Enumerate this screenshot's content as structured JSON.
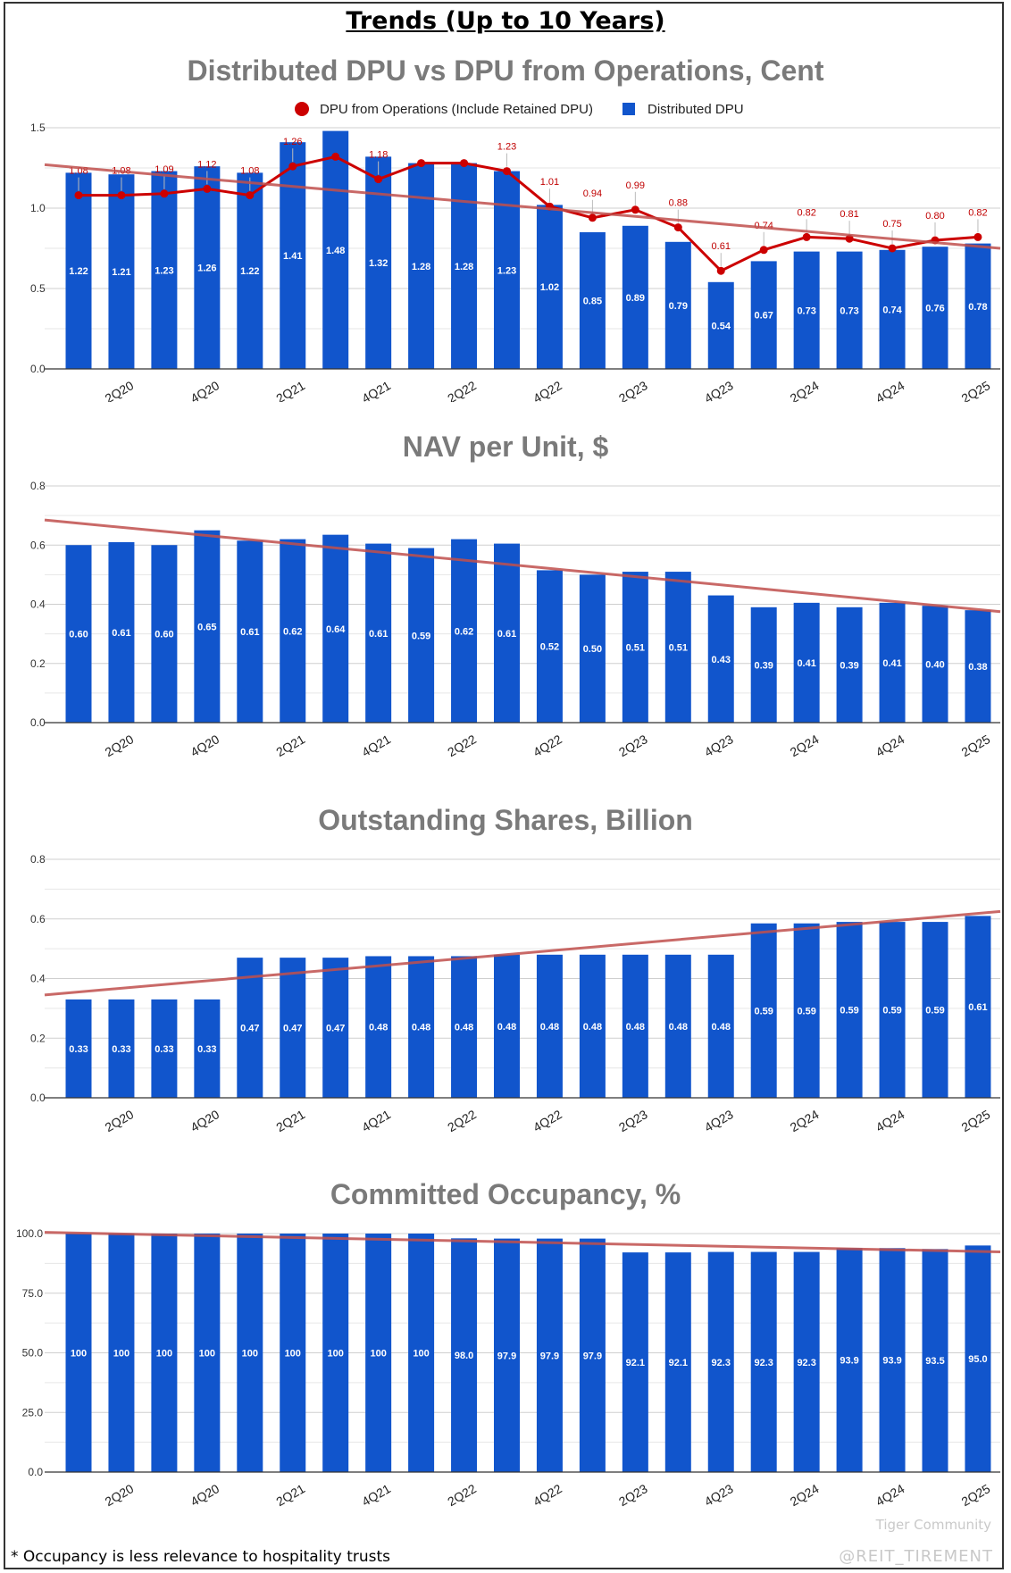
{
  "page": {
    "title": "Trends (Up to 10 Years)",
    "footnote": "* Occupancy is less relevance to hospitality trusts",
    "brand": "Tiger Community",
    "credit": "@REIT_TIREMENT"
  },
  "colors": {
    "bar": "#1155cc",
    "line": "#cc0000",
    "trend": "#c0504d"
  },
  "chart_data": [
    {
      "type": "bar",
      "title": "Distributed DPU vs DPU from Operations, Cent",
      "categories": [
        "1Q20",
        "2Q20",
        "3Q20",
        "4Q20",
        "1Q21",
        "2Q21",
        "3Q21",
        "4Q21",
        "1Q22",
        "2Q22",
        "3Q22",
        "4Q22",
        "1Q23",
        "2Q23",
        "3Q23",
        "4Q23",
        "1Q24",
        "2Q24",
        "3Q24",
        "4Q24",
        "1Q25",
        "2Q25"
      ],
      "x_tick_labels": [
        "2Q20",
        "4Q20",
        "2Q21",
        "4Q21",
        "2Q22",
        "4Q22",
        "2Q23",
        "4Q23",
        "2Q24",
        "4Q24",
        "2Q25"
      ],
      "yticks": [
        "0.0",
        "0.5",
        "1.0",
        "1.5"
      ],
      "ylim": [
        0,
        1.5
      ],
      "series": [
        {
          "name": "Distributed DPU",
          "type": "bar",
          "values": [
            1.22,
            1.21,
            1.23,
            1.26,
            1.22,
            1.41,
            1.48,
            1.32,
            1.28,
            1.28,
            1.23,
            1.02,
            0.85,
            0.89,
            0.79,
            0.54,
            0.67,
            0.73,
            0.73,
            0.74,
            0.76,
            0.78
          ],
          "labels": [
            "1.22",
            "1.21",
            "1.23",
            "1.26",
            "1.22",
            "1.41",
            "1.48",
            "1.32",
            "1.28",
            "1.28",
            "1.23",
            "1.02",
            "0.85",
            "0.89",
            "0.79",
            "0.54",
            "0.67",
            "0.73",
            "0.73",
            "0.74",
            "0.76",
            "0.78"
          ]
        },
        {
          "name": "DPU from Operations (Include Retained DPU)",
          "type": "line",
          "values": [
            1.08,
            1.08,
            1.09,
            1.12,
            1.08,
            1.26,
            1.32,
            1.18,
            1.28,
            1.28,
            1.23,
            1.01,
            0.94,
            0.99,
            0.88,
            0.61,
            0.74,
            0.82,
            0.81,
            0.75,
            0.8,
            0.82
          ],
          "labels": [
            "1.08",
            "1.08",
            "1.09",
            "1.12",
            "1.08",
            "1.26",
            "",
            "1.18",
            "",
            "",
            "1.23",
            "1.01",
            "0.94",
            "0.99",
            "0.88",
            "0.61",
            "0.74",
            "0.82",
            "0.81",
            "0.75",
            "0.80",
            "0.82"
          ]
        }
      ],
      "trendline": [
        1.27,
        0.75
      ],
      "legend": [
        "DPU from Operations (Include Retained DPU)",
        "Distributed DPU"
      ]
    },
    {
      "type": "bar",
      "title": "NAV per Unit, $",
      "categories": [
        "1Q20",
        "2Q20",
        "3Q20",
        "4Q20",
        "1Q21",
        "2Q21",
        "3Q21",
        "4Q21",
        "1Q22",
        "2Q22",
        "3Q22",
        "4Q22",
        "1Q23",
        "2Q23",
        "3Q23",
        "4Q23",
        "1Q24",
        "2Q24",
        "3Q24",
        "4Q24",
        "1Q25",
        "2Q25"
      ],
      "x_tick_labels": [
        "2Q20",
        "4Q20",
        "2Q21",
        "4Q21",
        "2Q22",
        "4Q22",
        "2Q23",
        "4Q23",
        "2Q24",
        "4Q24",
        "2Q25"
      ],
      "yticks": [
        "0.0",
        "0.2",
        "0.4",
        "0.6",
        "0.8"
      ],
      "ylim": [
        0,
        0.8
      ],
      "series": [
        {
          "name": "NAV per Unit",
          "type": "bar",
          "values": [
            0.6,
            0.61,
            0.6,
            0.65,
            0.615,
            0.62,
            0.635,
            0.605,
            0.59,
            0.62,
            0.605,
            0.515,
            0.5,
            0.51,
            0.51,
            0.43,
            0.39,
            0.405,
            0.39,
            0.405,
            0.395,
            0.38
          ],
          "labels": [
            "0.60",
            "0.61",
            "0.60",
            "0.65",
            "0.61",
            "0.62",
            "0.64",
            "0.61",
            "0.59",
            "0.62",
            "0.61",
            "0.52",
            "0.50",
            "0.51",
            "0.51",
            "0.43",
            "0.39",
            "0.41",
            "0.39",
            "0.41",
            "0.40",
            "0.38"
          ]
        }
      ],
      "trendline": [
        0.685,
        0.375
      ]
    },
    {
      "type": "bar",
      "title": "Outstanding Shares, Billion",
      "categories": [
        "1Q20",
        "2Q20",
        "3Q20",
        "4Q20",
        "1Q21",
        "2Q21",
        "3Q21",
        "4Q21",
        "1Q22",
        "2Q22",
        "3Q22",
        "4Q22",
        "1Q23",
        "2Q23",
        "3Q23",
        "4Q23",
        "1Q24",
        "2Q24",
        "3Q24",
        "4Q24",
        "1Q25",
        "2Q25"
      ],
      "x_tick_labels": [
        "2Q20",
        "4Q20",
        "2Q21",
        "4Q21",
        "2Q22",
        "4Q22",
        "2Q23",
        "4Q23",
        "2Q24",
        "4Q24",
        "2Q25"
      ],
      "yticks": [
        "0.0",
        "0.2",
        "0.4",
        "0.6",
        "0.8"
      ],
      "ylim": [
        0,
        0.8
      ],
      "series": [
        {
          "name": "Outstanding Shares",
          "type": "bar",
          "values": [
            0.33,
            0.33,
            0.33,
            0.33,
            0.47,
            0.47,
            0.47,
            0.475,
            0.475,
            0.475,
            0.48,
            0.48,
            0.48,
            0.48,
            0.48,
            0.48,
            0.585,
            0.585,
            0.59,
            0.59,
            0.59,
            0.61
          ],
          "labels": [
            "0.33",
            "0.33",
            "0.33",
            "0.33",
            "0.47",
            "0.47",
            "0.47",
            "0.48",
            "0.48",
            "0.48",
            "0.48",
            "0.48",
            "0.48",
            "0.48",
            "0.48",
            "0.48",
            "0.59",
            "0.59",
            "0.59",
            "0.59",
            "0.59",
            "0.61"
          ]
        }
      ],
      "trendline": [
        0.345,
        0.625
      ]
    },
    {
      "type": "bar",
      "title": "Committed Occupancy, %",
      "categories": [
        "1Q20",
        "2Q20",
        "3Q20",
        "4Q20",
        "1Q21",
        "2Q21",
        "3Q21",
        "4Q21",
        "1Q22",
        "2Q22",
        "3Q22",
        "4Q22",
        "1Q23",
        "2Q23",
        "3Q23",
        "4Q23",
        "1Q24",
        "2Q24",
        "3Q24",
        "4Q24",
        "1Q25",
        "2Q25"
      ],
      "x_tick_labels": [
        "2Q20",
        "4Q20",
        "2Q21",
        "4Q21",
        "2Q22",
        "4Q22",
        "2Q23",
        "4Q23",
        "2Q24",
        "4Q24",
        "2Q25"
      ],
      "yticks": [
        "0.0",
        "25.0",
        "50.0",
        "75.0",
        "100.0"
      ],
      "ylim": [
        0,
        100
      ],
      "series": [
        {
          "name": "Committed Occupancy",
          "type": "bar",
          "values": [
            100,
            100,
            100,
            100,
            100,
            100,
            100,
            100,
            100,
            98.0,
            97.9,
            97.9,
            97.9,
            92.1,
            92.1,
            92.3,
            92.3,
            92.3,
            93.9,
            93.9,
            93.5,
            95.0
          ],
          "labels": [
            "100",
            "100",
            "100",
            "100",
            "100",
            "100",
            "100",
            "100",
            "100",
            "98.0",
            "97.9",
            "97.9",
            "97.9",
            "92.1",
            "92.1",
            "92.3",
            "92.3",
            "92.3",
            "93.9",
            "93.9",
            "93.5",
            "95.0"
          ]
        }
      ],
      "trendline": [
        100.5,
        92.3
      ]
    }
  ]
}
